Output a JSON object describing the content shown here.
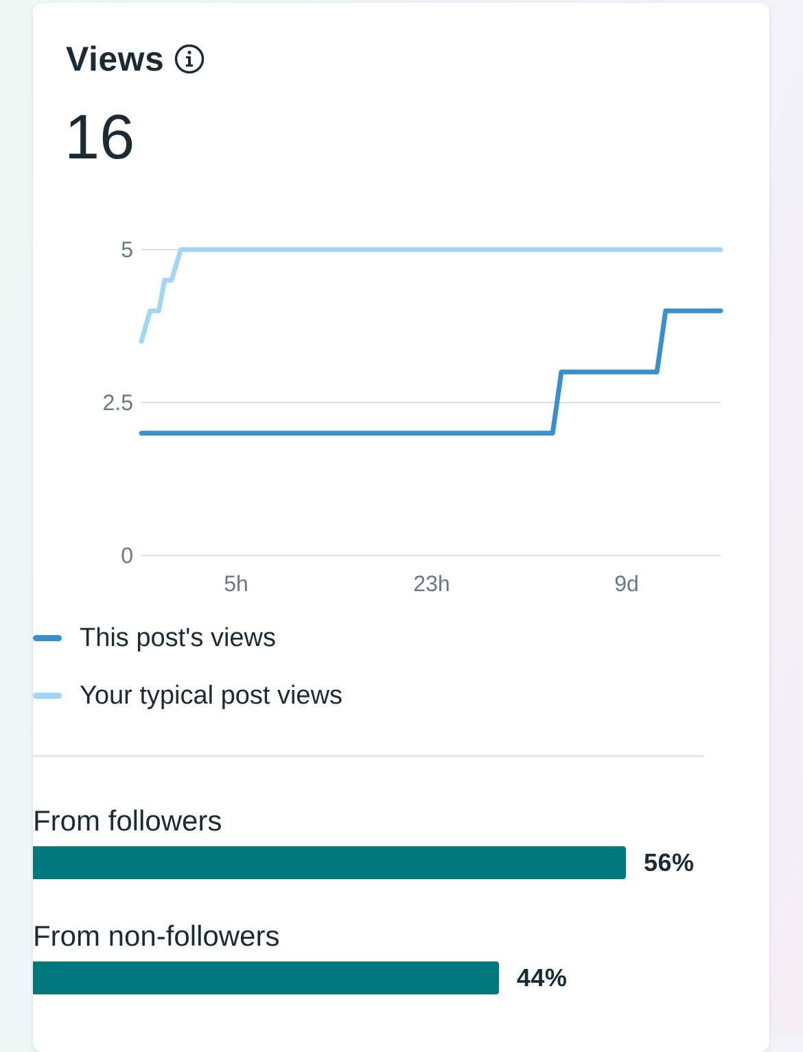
{
  "card": {
    "title": "Views",
    "info_icon": "info-circle-icon",
    "total": "16"
  },
  "chart_data": {
    "type": "line",
    "ylim": [
      0,
      5
    ],
    "yticks": [
      {
        "value": 0,
        "label": "0"
      },
      {
        "value": 2.5,
        "label": "2.5"
      },
      {
        "value": 5,
        "label": "5"
      }
    ],
    "xticks": [
      "5h",
      "23h",
      "9d"
    ],
    "grid": true,
    "series": [
      {
        "name": "This post's views",
        "color": "#3b8fcc",
        "points": [
          [
            0,
            2
          ],
          [
            0.71,
            2
          ],
          [
            0.725,
            3
          ],
          [
            0.89,
            3
          ],
          [
            0.905,
            4
          ],
          [
            1,
            4
          ]
        ]
      },
      {
        "name": "Your typical post views",
        "color": "#a3d6f5",
        "points": [
          [
            0,
            3.5
          ],
          [
            0.015,
            4
          ],
          [
            0.03,
            4
          ],
          [
            0.04,
            4.5
          ],
          [
            0.052,
            4.5
          ],
          [
            0.068,
            5
          ],
          [
            1,
            5
          ]
        ]
      }
    ],
    "legend_position": "bottom-left"
  },
  "audience": {
    "items": [
      {
        "label": "From followers",
        "percent_label": "56%",
        "fraction": 0.56
      },
      {
        "label": "From non-followers",
        "percent_label": "44%",
        "fraction": 0.44
      }
    ],
    "bar_color": "#00787c"
  }
}
